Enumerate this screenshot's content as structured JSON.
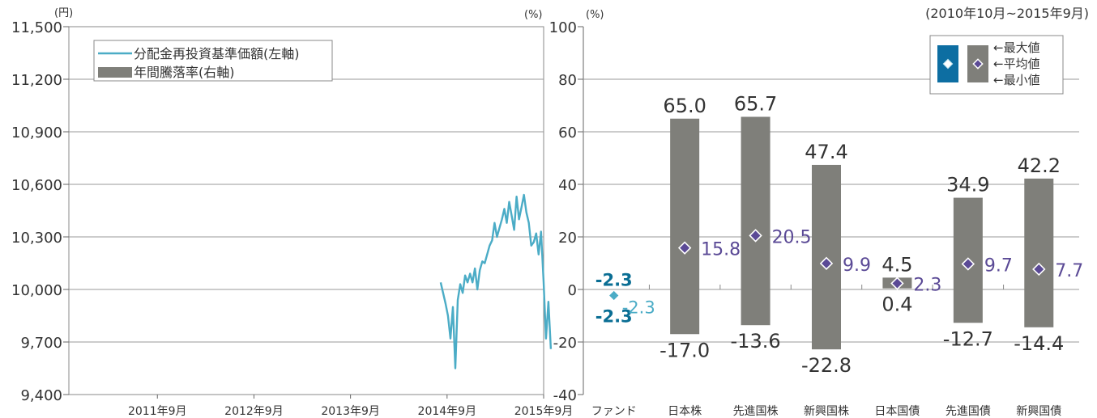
{
  "colors": {
    "fund_line": "#4bacc6",
    "bar": "#7f7f7a",
    "avg_marker": "#5b4a96",
    "fund_label": "#0a6e94",
    "fund_avg_label": "#4bacc6",
    "grid": "#9a9a9a",
    "text": "#333333",
    "legend_box": "#0d6ea2"
  },
  "chart_data": [
    {
      "type": "line",
      "y_unit_label": "(円)",
      "ylim": [
        9400,
        11500
      ],
      "y_ticks": [
        "9,400",
        "9,700",
        "10,000",
        "10,300",
        "10,600",
        "10,900",
        "11,200",
        "11,500"
      ],
      "y_tick_values": [
        9400,
        9700,
        10000,
        10300,
        10600,
        10900,
        11200,
        11500
      ],
      "x_ticks": [
        "2011年9月",
        "2012年9月",
        "2013年9月",
        "2014年9月",
        "2015年9月"
      ],
      "xlim": [
        "2010-10",
        "2015-09"
      ],
      "legend": [
        "分配金再投資基準価額(左軸)",
        "年間騰落率(右軸)"
      ],
      "series": [
        {
          "name": "分配金再投資基準価額(左軸)",
          "x": [
            "2014-08",
            "2014-08",
            "2014-09",
            "2014-09",
            "2014-09",
            "2014-09",
            "2014-10",
            "2014-10",
            "2014-10",
            "2014-10",
            "2014-11",
            "2014-11",
            "2014-11",
            "2014-12",
            "2014-12",
            "2014-12",
            "2015-01",
            "2015-01",
            "2015-01",
            "2015-02",
            "2015-02",
            "2015-03",
            "2015-03",
            "2015-03",
            "2015-04",
            "2015-04",
            "2015-04",
            "2015-04",
            "2015-05",
            "2015-05",
            "2015-05",
            "2015-06",
            "2015-06",
            "2015-06",
            "2015-06",
            "2015-07",
            "2015-07",
            "2015-07",
            "2015-08",
            "2015-08",
            "2015-08",
            "2015-08",
            "2015-09",
            "2015-09",
            "2015-09",
            "2015-09"
          ],
          "values": [
            10040,
            9980,
            9920,
            9850,
            9720,
            9900,
            9550,
            9940,
            10030,
            9980,
            10080,
            10040,
            10090,
            10040,
            10120,
            10000,
            10110,
            10160,
            10150,
            10200,
            10250,
            10280,
            10380,
            10300,
            10350,
            10400,
            10460,
            10380,
            10500,
            10420,
            10340,
            10530,
            10400,
            10470,
            10540,
            10440,
            10380,
            10250,
            10270,
            10320,
            10200,
            10330,
            10050,
            9720,
            9930,
            9660
          ]
        }
      ]
    },
    {
      "type": "bar",
      "subtype": "range",
      "y_unit_label": "(%)",
      "period": "(2010年10月~2015年9月)",
      "ylim": [
        -40,
        100
      ],
      "y_ticks": [
        "-40",
        "-20",
        "0",
        "20",
        "40",
        "60",
        "80",
        "100"
      ],
      "y_tick_values": [
        -40,
        -20,
        0,
        20,
        40,
        60,
        80,
        100
      ],
      "legend": [
        "←最大値",
        "←平均値",
        "←最小値"
      ],
      "categories": [
        "ファンド",
        "日本株",
        "先進国株",
        "新興国株",
        "日本国債",
        "先進国債",
        "新興国債"
      ],
      "series": [
        {
          "name": "最大値",
          "values": [
            -2.3,
            65.0,
            65.7,
            47.4,
            4.5,
            34.9,
            42.2
          ],
          "labels": [
            "-2.3",
            "65.0",
            "65.7",
            "47.4",
            "4.5",
            "34.9",
            "42.2"
          ]
        },
        {
          "name": "平均値",
          "values": [
            -2.3,
            15.8,
            20.5,
            9.9,
            2.3,
            9.7,
            7.7
          ],
          "labels": [
            "-2.3",
            "15.8",
            "20.5",
            "9.9",
            "2.3",
            "9.7",
            "7.7"
          ]
        },
        {
          "name": "最小値",
          "values": [
            -2.3,
            -17.0,
            -13.6,
            -22.8,
            0.4,
            -12.7,
            -14.4
          ],
          "labels": [
            "-2.3",
            "-17.0",
            "-13.6",
            "-22.8",
            "0.4",
            "-12.7",
            "-14.4"
          ]
        }
      ]
    }
  ]
}
